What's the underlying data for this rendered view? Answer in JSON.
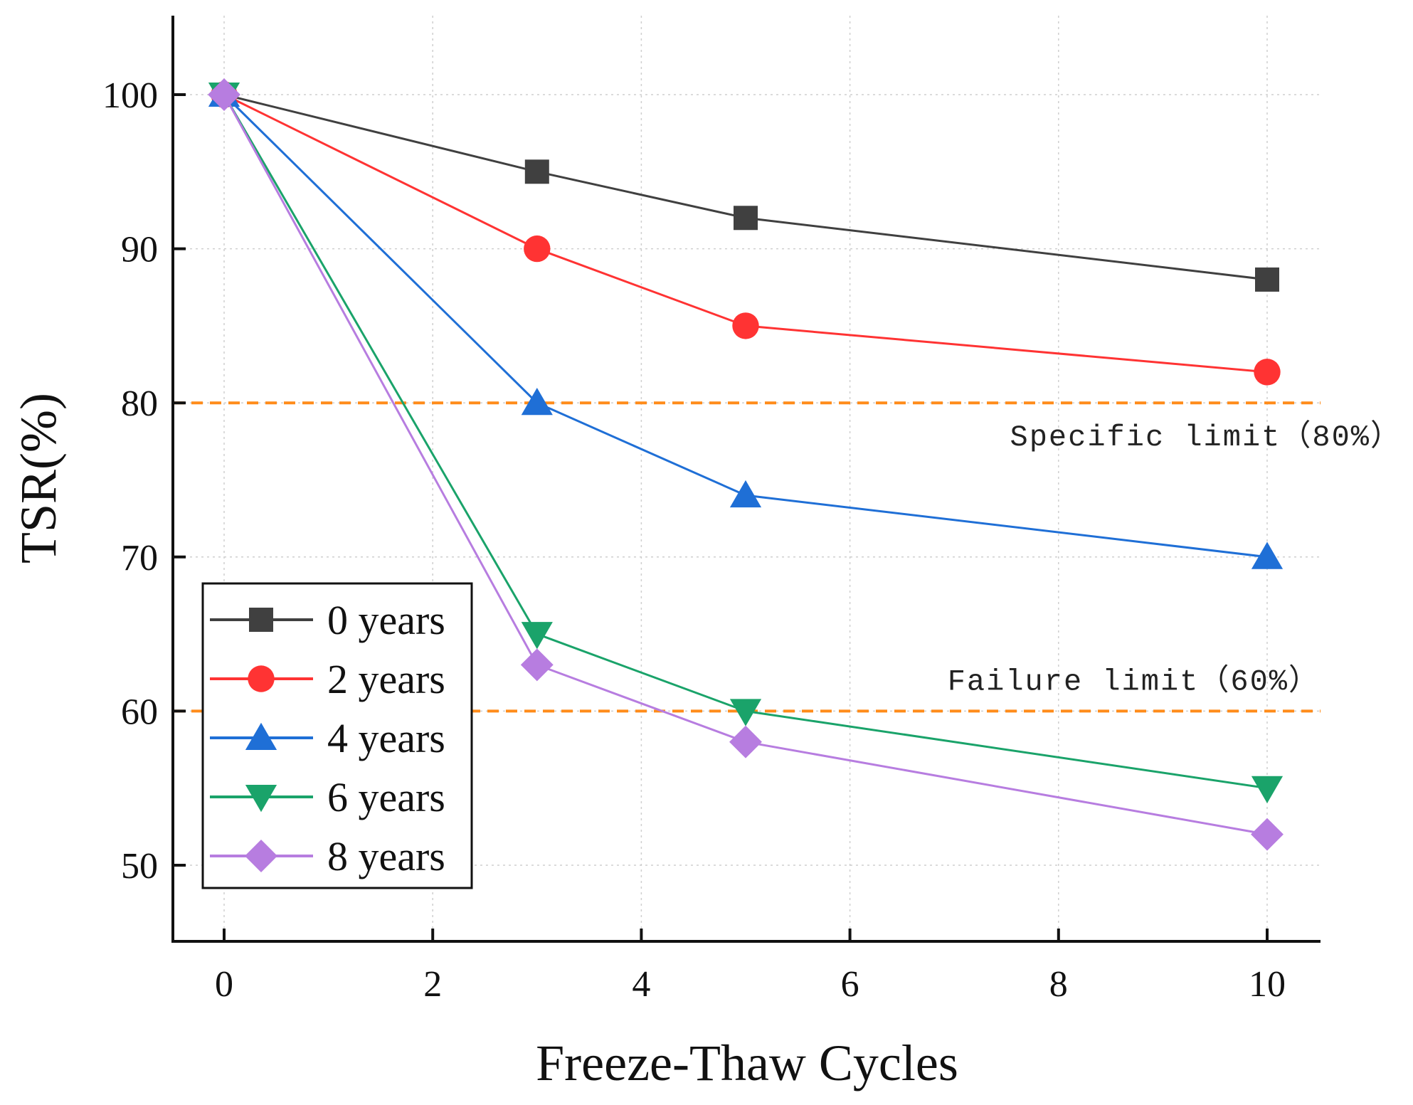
{
  "chart_data": {
    "type": "line",
    "title": "",
    "xlabel": "Freeze-Thaw Cycles",
    "ylabel": "TSR(%)",
    "xlim": [
      -0.5,
      10.5
    ],
    "ylim": [
      45,
      105
    ],
    "xticks": [
      0,
      2,
      4,
      6,
      8,
      10
    ],
    "yticks": [
      50,
      60,
      70,
      80,
      90,
      100
    ],
    "grid": true,
    "legend_position": "bottom-left",
    "x": [
      0,
      3,
      5,
      10
    ],
    "series": [
      {
        "name": "0 years",
        "values": [
          100,
          95,
          92,
          88
        ],
        "color": "#404040",
        "marker": "square"
      },
      {
        "name": "2 years",
        "values": [
          100,
          90,
          85,
          82
        ],
        "color": "#ff3333",
        "marker": "circle"
      },
      {
        "name": "4 years",
        "values": [
          100,
          80,
          74,
          70
        ],
        "color": "#1f6fd6",
        "marker": "triangle-up"
      },
      {
        "name": "6 years",
        "values": [
          100,
          65,
          60,
          55
        ],
        "color": "#1aa36a",
        "marker": "triangle-down"
      },
      {
        "name": "8 years",
        "values": [
          100,
          63,
          58,
          52
        ],
        "color": "#b77de0",
        "marker": "diamond"
      }
    ],
    "reference_lines": [
      {
        "value": 80,
        "label": "Specific limit（80%）",
        "color": "#ff8c1a"
      },
      {
        "value": 60,
        "label": "Failure limit（60%）",
        "color": "#ff8c1a"
      }
    ]
  }
}
